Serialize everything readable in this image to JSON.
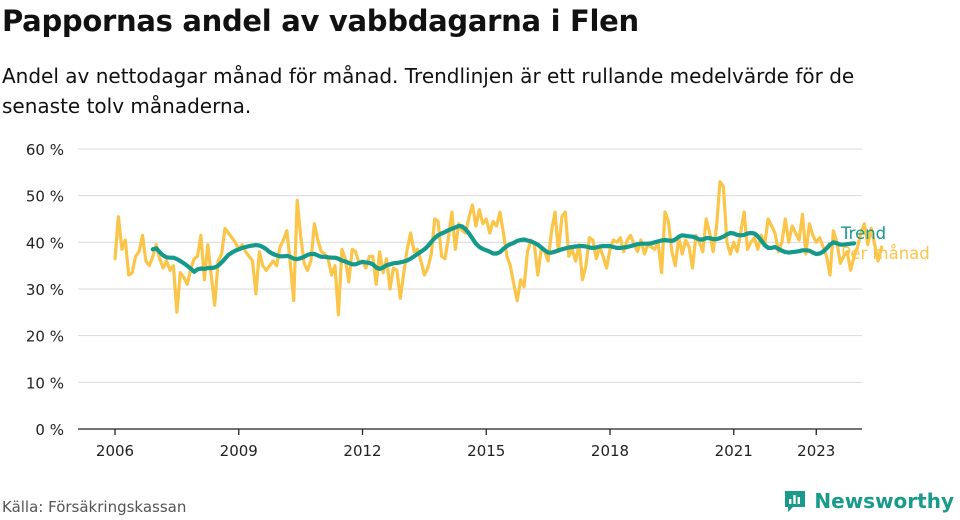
{
  "title": "Pappornas andel av vabbdagarna i Flen",
  "subtitle": "Andel av nettodagar månad för månad. Trendlinjen är ett rullande medelvärde för de senaste tolv månaderna.",
  "source": "Källa: Försäkringskassan",
  "brand": {
    "name": "Newsworthy",
    "icon": "newsworthy-logo-icon",
    "color": "#1a9a8b"
  },
  "chart_data": {
    "type": "line",
    "title": "Pappornas andel av vabbdagarna i Flen",
    "ylim": [
      0,
      60
    ],
    "y_ticks": [
      "0 %",
      "10 %",
      "20 %",
      "30 %",
      "40 %",
      "50 %",
      "60 %"
    ],
    "x_ticks": [
      "2006",
      "2009",
      "2012",
      "2015",
      "2018",
      "2021",
      "2023"
    ],
    "grid": true,
    "legend": "right, labels at line ends",
    "series": [
      {
        "name": "Per månad",
        "color": "#fbc54a",
        "x_start": "2006-01",
        "frequency": "monthly",
        "values": [
          36.5,
          45.5,
          38.5,
          40.5,
          33.0,
          33.5,
          37.0,
          38.0,
          41.5,
          36.0,
          35.0,
          37.0,
          39.5,
          36.5,
          34.5,
          36.0,
          34.0,
          35.0,
          25.0,
          33.5,
          32.5,
          31.0,
          34.0,
          36.5,
          37.0,
          41.5,
          32.0,
          39.5,
          33.0,
          26.5,
          36.0,
          37.5,
          43.0,
          42.0,
          41.0,
          40.0,
          38.5,
          39.5,
          38.0,
          37.0,
          36.0,
          29.0,
          38.0,
          35.0,
          34.0,
          35.0,
          36.0,
          35.0,
          39.0,
          40.5,
          42.5,
          35.5,
          27.5,
          49.0,
          41.5,
          35.5,
          34.0,
          36.0,
          44.0,
          40.5,
          38.0,
          37.5,
          36.5,
          33.0,
          35.0,
          24.5,
          38.5,
          36.5,
          31.5,
          38.5,
          38.0,
          35.5,
          36.0,
          34.5,
          37.0,
          37.0,
          31.0,
          38.0,
          33.5,
          36.5,
          30.0,
          34.5,
          34.0,
          28.0,
          33.5,
          38.5,
          42.0,
          38.0,
          38.5,
          36.0,
          33.0,
          34.5,
          37.5,
          45.0,
          44.5,
          37.0,
          36.5,
          41.0,
          46.5,
          38.5,
          44.0,
          42.5,
          42.0,
          45.5,
          48.0,
          43.5,
          47.0,
          44.0,
          45.0,
          42.0,
          44.5,
          43.5,
          46.5,
          42.0,
          37.0,
          35.0,
          31.0,
          27.5,
          32.0,
          30.5,
          38.0,
          40.5,
          39.5,
          33.0,
          38.5,
          38.0,
          36.0,
          42.5,
          46.5,
          38.0,
          45.5,
          46.5,
          37.0,
          38.5,
          36.0,
          39.5,
          32.0,
          35.0,
          41.0,
          40.5,
          36.5,
          39.0,
          37.0,
          34.5,
          38.5,
          40.5,
          40.0,
          41.0,
          38.0,
          40.5,
          41.5,
          39.5,
          38.0,
          40.5,
          37.5,
          39.5,
          39.0,
          38.5,
          40.0,
          33.5,
          46.5,
          44.5,
          38.0,
          35.0,
          41.0,
          37.5,
          40.5,
          39.0,
          34.5,
          41.5,
          40.0,
          38.0,
          45.0,
          42.0,
          38.0,
          43.5,
          53.0,
          52.0,
          40.0,
          37.5,
          40.0,
          38.0,
          42.0,
          46.5,
          38.5,
          40.0,
          41.0,
          38.5,
          41.5,
          39.5,
          45.0,
          43.5,
          42.0,
          38.0,
          40.0,
          45.0,
          40.0,
          43.5,
          42.0,
          40.5,
          46.0,
          37.5,
          44.0,
          41.5,
          40.0,
          41.0,
          39.0,
          37.0,
          33.0,
          42.5,
          40.0,
          35.5,
          37.0,
          38.0,
          34.0,
          37.0,
          39.0,
          42.0,
          44.0,
          39.5,
          43.0,
          39.5,
          36.0,
          39.0
        ]
      },
      {
        "name": "Trend",
        "color": "#14998b",
        "x_start": "2006-12",
        "frequency": "monthly",
        "values": [
          38.5,
          38.7,
          37.9,
          37.2,
          36.8,
          36.7,
          36.7,
          36.4,
          36.0,
          35.5,
          35.0,
          34.4,
          33.7,
          34.2,
          34.4,
          34.3,
          34.5,
          34.5,
          34.6,
          35.0,
          35.7,
          36.5,
          37.3,
          37.8,
          38.2,
          38.5,
          38.8,
          39.0,
          39.2,
          39.3,
          39.4,
          39.3,
          39.0,
          38.5,
          37.9,
          37.5,
          37.2,
          37.0,
          37.0,
          37.1,
          36.9,
          36.5,
          36.4,
          36.6,
          36.9,
          37.3,
          37.5,
          37.5,
          37.2,
          36.9,
          36.9,
          36.8,
          36.7,
          36.7,
          36.5,
          36.1,
          35.9,
          35.6,
          35.3,
          35.3,
          35.6,
          35.8,
          35.7,
          35.6,
          35.3,
          34.6,
          34.3,
          34.6,
          35.1,
          35.3,
          35.5,
          35.6,
          35.7,
          35.9,
          36.1,
          36.5,
          37.0,
          37.5,
          38.0,
          38.5,
          39.2,
          40.1,
          40.9,
          41.5,
          41.9,
          42.2,
          42.6,
          42.9,
          43.2,
          43.5,
          43.4,
          42.8,
          41.9,
          40.8,
          39.7,
          39.0,
          38.6,
          38.3,
          38.0,
          37.6,
          37.6,
          37.9,
          38.6,
          39.2,
          39.6,
          39.9,
          40.3,
          40.5,
          40.6,
          40.4,
          40.2,
          39.9,
          39.5,
          38.9,
          38.3,
          37.8,
          37.8,
          38.0,
          38.3,
          38.5,
          38.7,
          38.9,
          39.0,
          39.1,
          39.2,
          39.2,
          39.1,
          38.9,
          38.8,
          38.9,
          39.1,
          39.2,
          39.2,
          39.2,
          39.0,
          38.8,
          38.8,
          38.9,
          39.0,
          39.2,
          39.4,
          39.6,
          39.7,
          39.7,
          39.7,
          39.8,
          40.0,
          40.2,
          40.4,
          40.5,
          40.4,
          40.3,
          40.6,
          41.2,
          41.5,
          41.4,
          41.3,
          41.2,
          41.0,
          40.6,
          40.6,
          40.9,
          40.9,
          40.7,
          40.7,
          40.9,
          41.2,
          41.7,
          42.0,
          41.9,
          41.6,
          41.5,
          41.6,
          41.9,
          42.0,
          41.9,
          41.3,
          40.4,
          39.4,
          38.8,
          38.8,
          39.0,
          38.6,
          38.2,
          37.9,
          37.8,
          37.9,
          38.0,
          38.1,
          38.3,
          38.3,
          38.2,
          37.8,
          37.5,
          37.6,
          38.0,
          38.7,
          39.5,
          40.0,
          39.8,
          39.5,
          39.5,
          39.6,
          39.7,
          39.8
        ]
      }
    ]
  }
}
